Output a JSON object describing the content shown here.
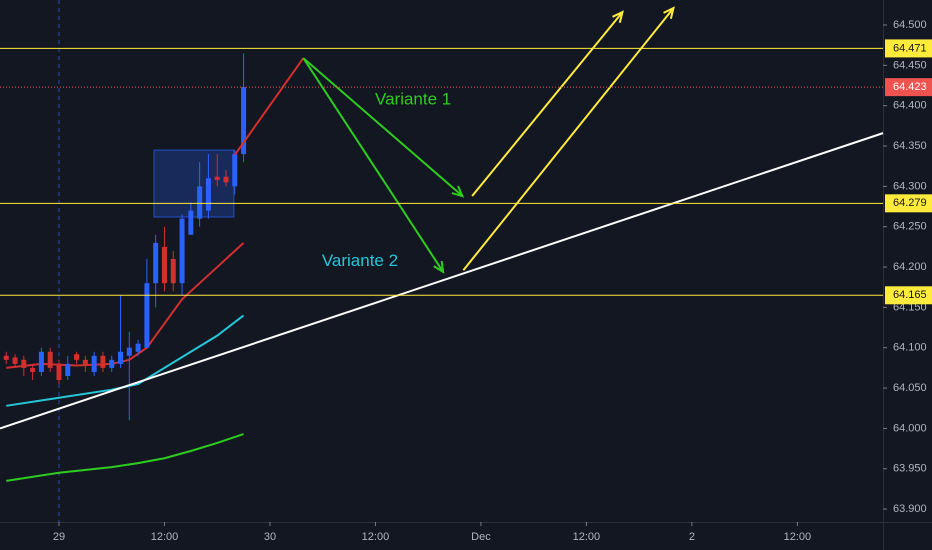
{
  "chart_data": {
    "type": "candlestick",
    "background": "#131722",
    "xlim": [
      -6.71,
      93.74
    ],
    "ylim": [
      63.884,
      64.531
    ],
    "xticks": [
      {
        "value": 0,
        "label": "29"
      },
      {
        "value": 12,
        "label": "12:00"
      },
      {
        "value": 24,
        "label": "30"
      },
      {
        "value": 36,
        "label": "12:00"
      },
      {
        "value": 48,
        "label": "Dec"
      },
      {
        "value": 60,
        "label": "12:00"
      },
      {
        "value": 72,
        "label": "2"
      },
      {
        "value": 84,
        "label": "12:00"
      }
    ],
    "yticks": [
      {
        "value": 63.9,
        "label": "63.900"
      },
      {
        "value": 63.95,
        "label": "63.950"
      },
      {
        "value": 64.0,
        "label": "64.000"
      },
      {
        "value": 64.05,
        "label": "64.050"
      },
      {
        "value": 64.1,
        "label": "64.100"
      },
      {
        "value": 64.15,
        "label": "64.150"
      },
      {
        "value": 64.2,
        "label": "64.200"
      },
      {
        "value": 64.25,
        "label": "64.250"
      },
      {
        "value": 64.3,
        "label": "64.300"
      },
      {
        "value": 64.35,
        "label": "64.350"
      },
      {
        "value": 64.4,
        "label": "64.400"
      },
      {
        "value": 64.45,
        "label": "64.450"
      },
      {
        "value": 64.5,
        "label": "64.500"
      }
    ],
    "up_color": "#2962ff",
    "down_color": "#d32f2f",
    "candles": {
      "x": [
        -6,
        -5,
        -4,
        -3,
        -2,
        -1,
        0,
        1,
        2,
        3,
        4,
        5,
        6,
        7,
        8,
        9,
        10,
        11,
        12,
        13,
        14,
        15,
        16,
        17,
        18,
        19,
        20,
        21
      ],
      "open": [
        64.09,
        64.088,
        64.085,
        64.075,
        64.07,
        64.095,
        64.08,
        64.065,
        64.092,
        64.085,
        64.07,
        64.09,
        64.075,
        64.08,
        64.09,
        64.095,
        64.1,
        64.18,
        64.225,
        64.21,
        64.18,
        64.24,
        64.26,
        64.27,
        64.312,
        64.312,
        64.3,
        64.34
      ],
      "high": [
        64.095,
        64.092,
        64.09,
        64.08,
        64.1,
        64.1,
        64.085,
        64.09,
        64.095,
        64.09,
        64.095,
        64.095,
        64.09,
        64.165,
        64.12,
        64.11,
        64.21,
        64.24,
        64.25,
        64.22,
        64.265,
        64.28,
        64.33,
        64.34,
        64.34,
        64.32,
        64.345,
        64.465
      ],
      "low": [
        64.08,
        64.075,
        64.065,
        64.06,
        64.065,
        64.07,
        64.055,
        64.06,
        64.08,
        64.07,
        64.065,
        64.07,
        64.07,
        64.075,
        64.01,
        64.09,
        64.1,
        64.15,
        64.17,
        64.17,
        64.165,
        64.24,
        64.25,
        64.26,
        64.3,
        64.3,
        64.29,
        64.33
      ],
      "close": [
        64.085,
        64.08,
        64.075,
        64.07,
        64.095,
        64.075,
        64.06,
        64.08,
        64.085,
        64.078,
        64.09,
        64.075,
        64.085,
        64.095,
        64.1,
        64.105,
        64.18,
        64.23,
        64.18,
        64.18,
        64.26,
        64.27,
        64.3,
        64.31,
        64.308,
        64.305,
        64.34,
        64.423
      ]
    },
    "series": [
      {
        "color": "#d32f2f",
        "x": [
          -6,
          -2,
          2,
          6,
          8,
          10,
          12,
          14,
          16,
          18,
          21
        ],
        "values": [
          64.075,
          64.08,
          64.078,
          64.08,
          64.085,
          64.1,
          64.13,
          64.16,
          64.18,
          64.2,
          64.23
        ]
      },
      {
        "color": "#26c6da",
        "x": [
          -6,
          0,
          6,
          9,
          12,
          15,
          18,
          21
        ],
        "values": [
          64.028,
          64.038,
          64.048,
          64.055,
          64.075,
          64.095,
          64.115,
          64.14
        ]
      },
      {
        "color": "#2ecc1f",
        "x": [
          -6,
          0,
          6,
          9,
          12,
          15,
          18,
          21
        ],
        "values": [
          63.935,
          63.945,
          63.952,
          63.957,
          63.963,
          63.972,
          63.982,
          63.993
        ]
      }
    ],
    "levels": [
      {
        "value": 64.471,
        "color": "#ffeb3b"
      },
      {
        "value": 64.279,
        "color": "#ffeb3b"
      },
      {
        "value": 64.165,
        "color": "#ffeb3b"
      },
      {
        "value": 64.423,
        "color": "#ef5350",
        "dashed": true
      }
    ],
    "vline": 0,
    "box": {
      "x": [
        10.8,
        19.9
      ],
      "y": [
        64.262,
        64.345
      ],
      "color": "#2962ff"
    },
    "lines": [
      {
        "color": "#ffffff",
        "x": [
          -6.71,
          93.74
        ],
        "y": [
          64.0,
          64.366
        ]
      },
      {
        "color": "#d32f2f",
        "x": [
          20.0,
          27.8
        ],
        "y": [
          64.339,
          64.459
        ]
      },
      {
        "color": "#2ecc1f",
        "x": [
          27.8,
          45.9
        ],
        "y": [
          64.459,
          64.288
        ],
        "arrow": true
      },
      {
        "color": "#2ecc1f",
        "x": [
          27.8,
          43.7
        ],
        "y": [
          64.459,
          64.194
        ],
        "arrow": true
      },
      {
        "color": "#ffeb3b",
        "x": [
          47.0,
          64.1
        ],
        "y": [
          64.288,
          64.516
        ],
        "arrow": true
      },
      {
        "color": "#ffeb3b",
        "x": [
          46.0,
          69.9
        ],
        "y": [
          64.196,
          64.521
        ],
        "arrow": true
      }
    ],
    "annotations": [
      {
        "text": "Variante 1",
        "x": 35.95,
        "y": 64.407,
        "color": "#2ecc1f"
      },
      {
        "text": "Variante 2",
        "x": 29.9,
        "y": 64.207,
        "color": "#26c6da"
      }
    ]
  }
}
